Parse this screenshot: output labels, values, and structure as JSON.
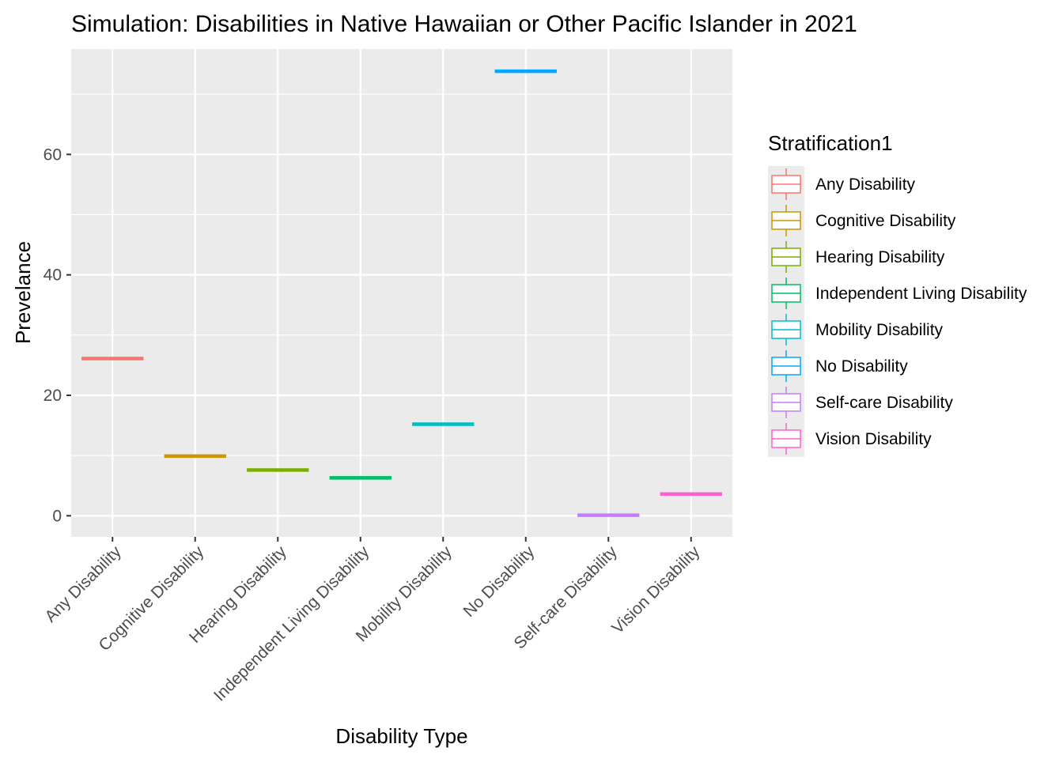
{
  "chart_data": {
    "type": "boxplot",
    "title": "Simulation: Disabilities in Native Hawaiian or Other Pacific Islander in 2021",
    "xlabel": "Disability Type",
    "ylabel": "Prevelance",
    "ylim": [
      -3.5,
      77.5
    ],
    "yticks": [
      0,
      20,
      40,
      60
    ],
    "grid": true,
    "legend": {
      "title": "Stratification1",
      "placement": "right"
    },
    "categories": [
      "Any Disability",
      "Cognitive Disability",
      "Hearing Disability",
      "Independent Living Disability",
      "Mobility Disability",
      "No Disability",
      "Self-care Disability",
      "Vision Disability"
    ],
    "values": [
      26.1,
      9.9,
      7.6,
      6.3,
      15.2,
      73.8,
      0.1,
      3.6
    ],
    "colors": [
      "#F8766D",
      "#CD9600",
      "#7CAE00",
      "#00BE67",
      "#00BFC4",
      "#00A9FF",
      "#C77CFF",
      "#FF61CC"
    ]
  }
}
